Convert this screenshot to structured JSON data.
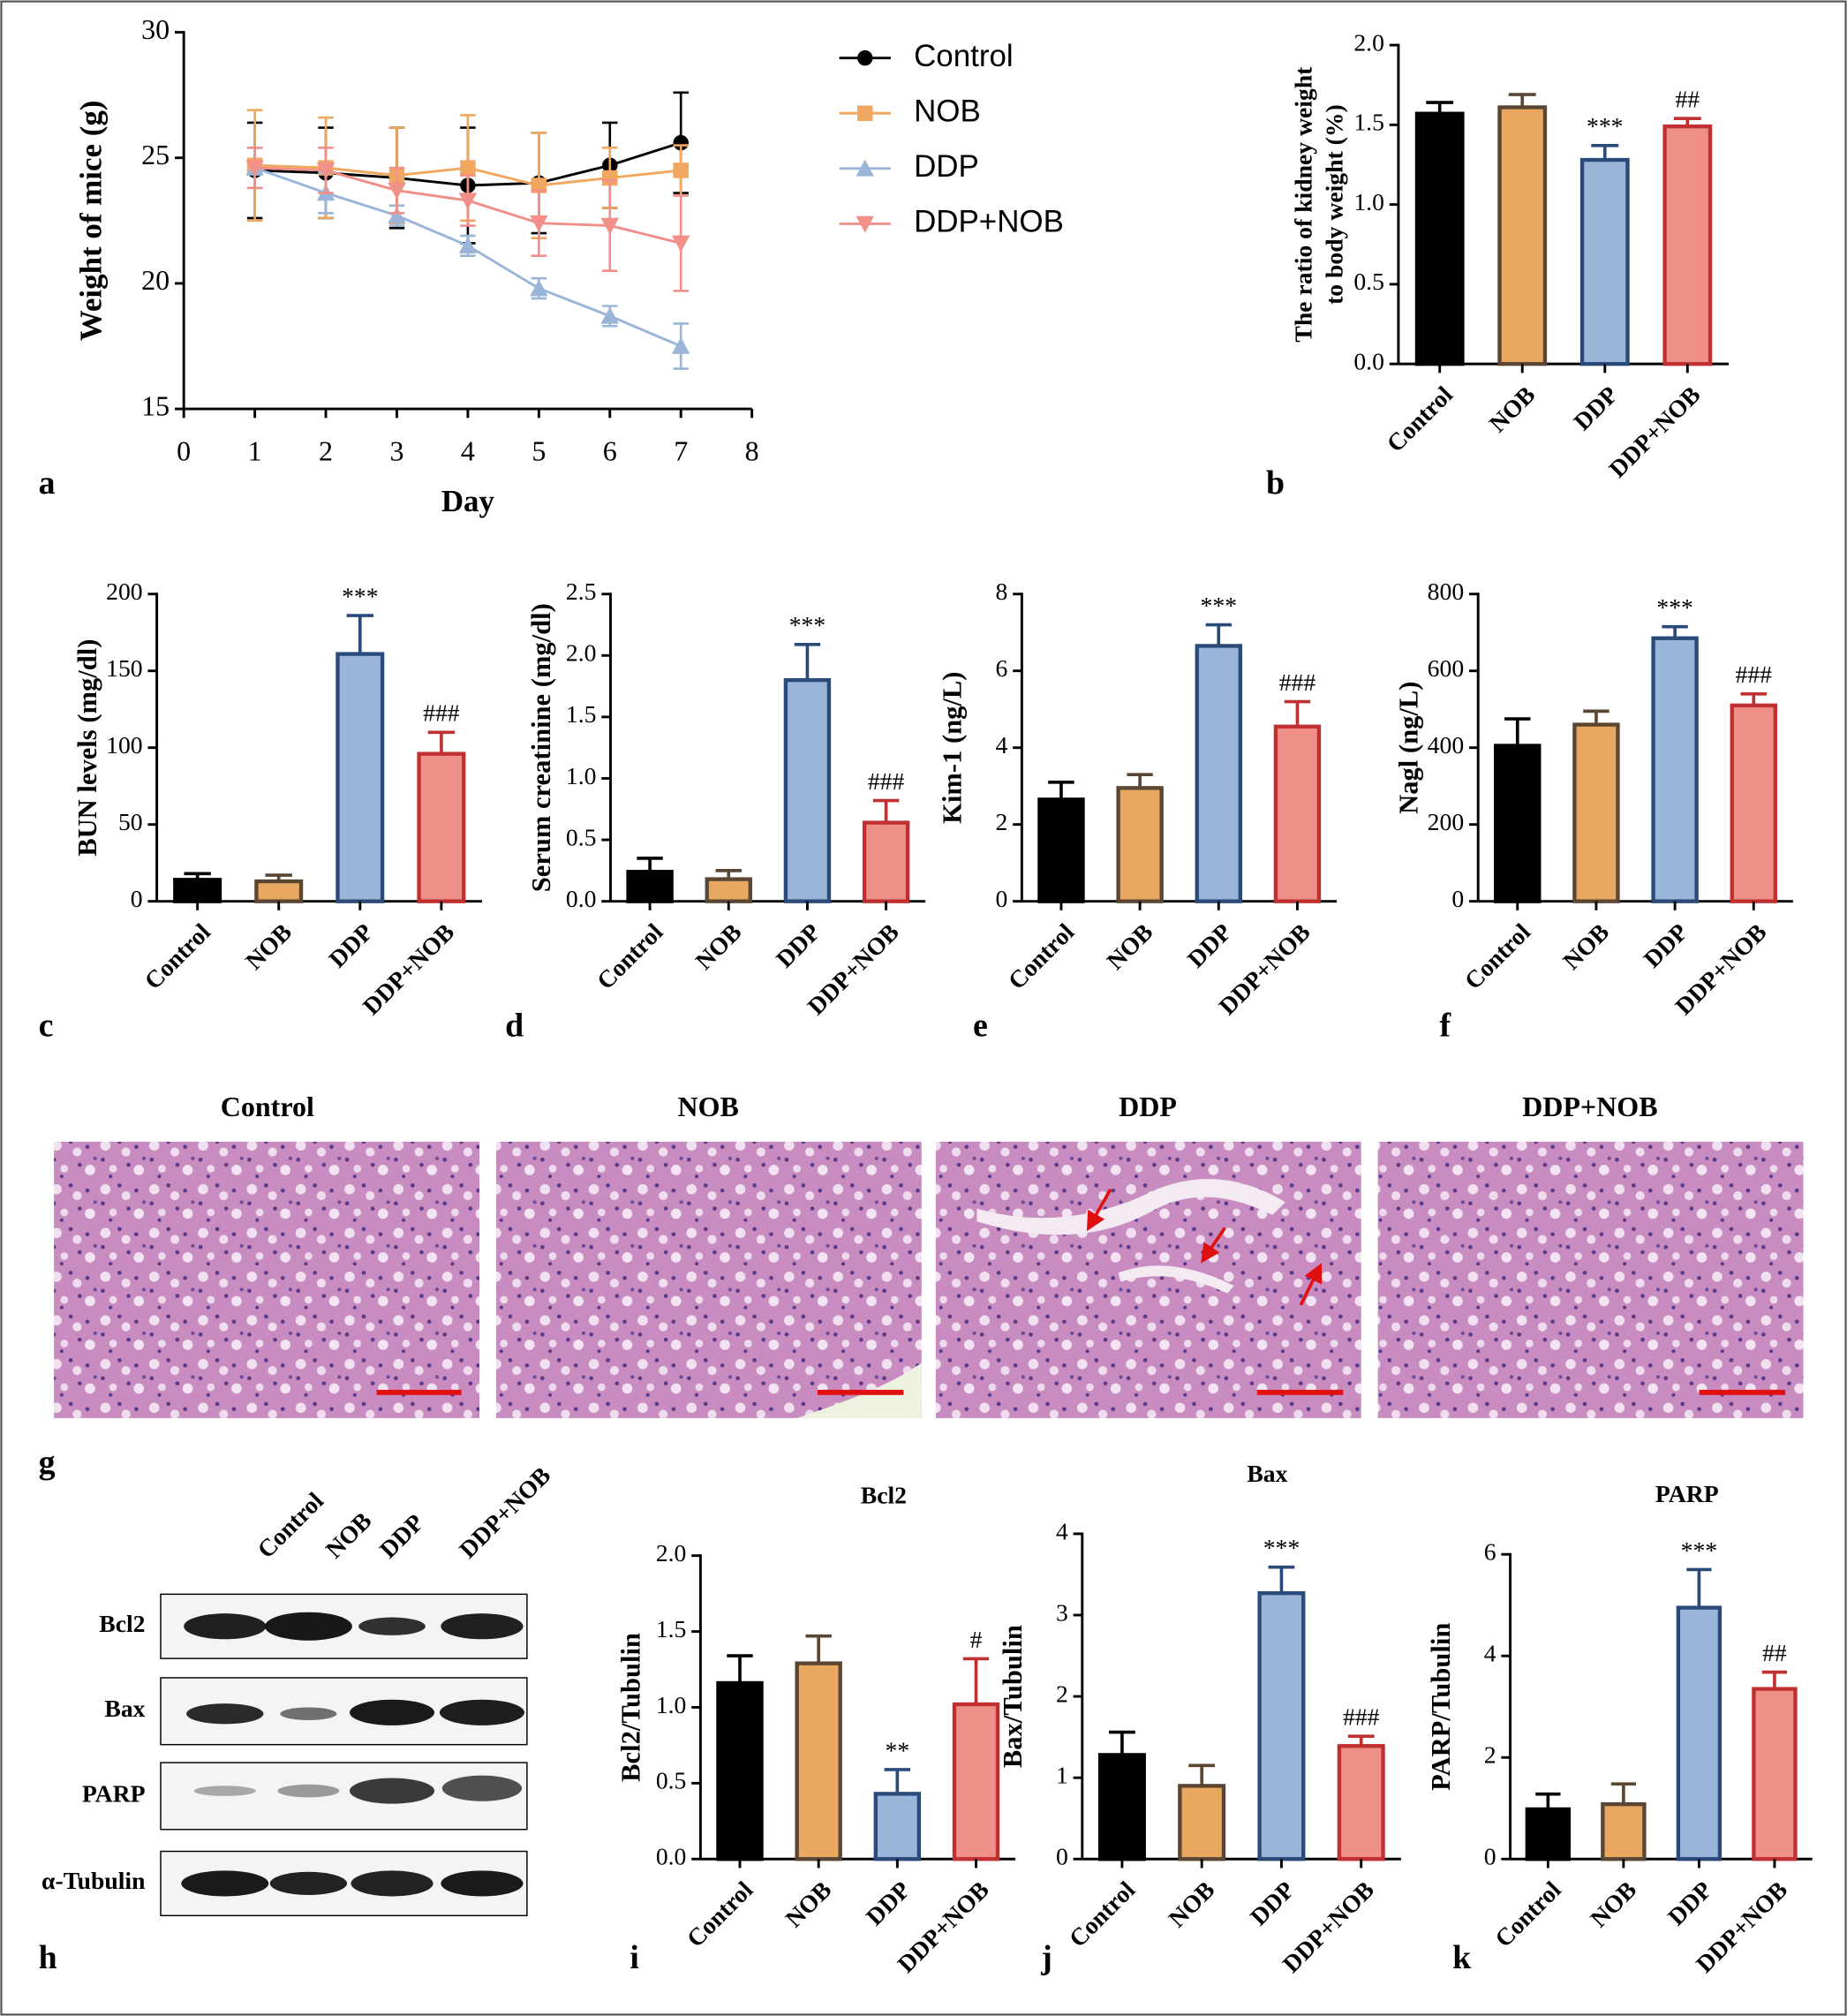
{
  "chart_data": [
    {
      "type": "line",
      "panel": "a",
      "xlabel": "Day",
      "ylabel": "Weight of mice (g)",
      "x": [
        1,
        2,
        3,
        4,
        5,
        6,
        7
      ],
      "xlim": [
        0,
        8
      ],
      "xticks": [
        0,
        1,
        2,
        3,
        4,
        5,
        6,
        7,
        8
      ],
      "ylim": [
        15,
        30
      ],
      "yticks": [
        15,
        20,
        25,
        30
      ],
      "legend": "right",
      "series": [
        {
          "name": "Control",
          "color": "#000000",
          "marker": "circle",
          "values": [
            24.5,
            24.4,
            24.2,
            23.9,
            24.0,
            24.7,
            25.6
          ],
          "errors": [
            1.9,
            1.8,
            2.0,
            2.3,
            2.0,
            1.7,
            2.0
          ]
        },
        {
          "name": "NOB",
          "color": "#f0a860",
          "marker": "square",
          "values": [
            24.7,
            24.6,
            24.3,
            24.6,
            23.9,
            24.2,
            24.5
          ],
          "errors": [
            2.2,
            2.0,
            1.9,
            2.1,
            2.1,
            1.2,
            1.0
          ]
        },
        {
          "name": "DDP",
          "color": "#9ab5d8",
          "marker": "triangle-up",
          "values": [
            24.6,
            23.6,
            22.7,
            21.5,
            19.8,
            18.7,
            17.5
          ],
          "errors": [
            0.8,
            0.8,
            0.4,
            0.4,
            0.4,
            0.4,
            0.9
          ]
        },
        {
          "name": "DDP+NOB",
          "color": "#f09088",
          "marker": "triangle-down",
          "values": [
            24.6,
            24.5,
            23.7,
            23.3,
            22.4,
            22.3,
            21.6
          ],
          "errors": [
            0.8,
            0.9,
            0.9,
            1.0,
            1.3,
            1.8,
            1.9
          ]
        }
      ]
    },
    {
      "type": "bar",
      "panel": "b",
      "ylabel": [
        "The ratio of kidney weight",
        "to body weight (%)"
      ],
      "categories": [
        "Control",
        "NOB",
        "DDP",
        "DDP+NOB"
      ],
      "values": [
        1.57,
        1.61,
        1.28,
        1.49
      ],
      "errors": [
        0.07,
        0.08,
        0.09,
        0.05
      ],
      "annotations": [
        null,
        null,
        "***",
        "##"
      ],
      "ylim": [
        0,
        2
      ],
      "yticks": [
        {
          "value": 0,
          "label": "0.0"
        },
        0.5,
        {
          "value": 1,
          "label": "1.0"
        },
        1.5,
        {
          "value": 2,
          "label": "2.0"
        }
      ],
      "colors": [
        "#000000",
        "#e8a860",
        "#9ab5d8",
        "#ee9088"
      ],
      "edgecolors": [
        "#000000",
        "#5a4632",
        "#2a4a7a",
        "#c03030"
      ]
    },
    {
      "type": "bar",
      "panel": "c",
      "ylabel": "BUN levels (mg/dl)",
      "categories": [
        "Control",
        "NOB",
        "DDP",
        "DDP+NOB"
      ],
      "values": [
        14,
        13,
        161,
        96
      ],
      "errors": [
        4,
        4,
        25,
        14
      ],
      "annotations": [
        null,
        null,
        "***",
        "###"
      ],
      "ylim": [
        0,
        200
      ],
      "yticks": [
        0,
        50,
        100,
        150,
        200
      ],
      "colors": [
        "#000000",
        "#e8a860",
        "#9ab5d8",
        "#ee9088"
      ],
      "edgecolors": [
        "#000000",
        "#5a4632",
        "#2a4a7a",
        "#c03030"
      ]
    },
    {
      "type": "bar",
      "panel": "d",
      "ylabel": "Serum creatinine (mg/dl)",
      "categories": [
        "Control",
        "NOB",
        "DDP",
        "DDP+NOB"
      ],
      "values": [
        0.24,
        0.18,
        1.8,
        0.64
      ],
      "errors": [
        0.11,
        0.07,
        0.29,
        0.18
      ],
      "annotations": [
        null,
        null,
        "***",
        "###"
      ],
      "ylim": [
        0,
        2.5
      ],
      "yticks": [
        {
          "value": 0,
          "label": "0.0"
        },
        0.5,
        {
          "value": 1,
          "label": "1.0"
        },
        1.5,
        {
          "value": 2,
          "label": "2.0"
        },
        2.5
      ],
      "colors": [
        "#000000",
        "#e8a860",
        "#9ab5d8",
        "#ee9088"
      ],
      "edgecolors": [
        "#000000",
        "#5a4632",
        "#2a4a7a",
        "#c03030"
      ]
    },
    {
      "type": "bar",
      "panel": "e",
      "ylabel": "Kim-1 (ng/L)",
      "categories": [
        "Control",
        "NOB",
        "DDP",
        "DDP+NOB"
      ],
      "values": [
        2.65,
        2.95,
        6.65,
        4.55
      ],
      "errors": [
        0.45,
        0.35,
        0.55,
        0.65
      ],
      "annotations": [
        null,
        null,
        "***",
        "###"
      ],
      "ylim": [
        0,
        8
      ],
      "yticks": [
        0,
        2,
        4,
        6,
        8
      ],
      "colors": [
        "#000000",
        "#e8a860",
        "#9ab5d8",
        "#ee9088"
      ],
      "edgecolors": [
        "#000000",
        "#5a4632",
        "#2a4a7a",
        "#c03030"
      ]
    },
    {
      "type": "bar",
      "panel": "f",
      "ylabel": "Nagl (ng/L)",
      "categories": [
        "Control",
        "NOB",
        "DDP",
        "DDP+NOB"
      ],
      "values": [
        405,
        460,
        685,
        510
      ],
      "errors": [
        70,
        35,
        30,
        30
      ],
      "annotations": [
        null,
        null,
        "***",
        "###"
      ],
      "ylim": [
        0,
        800
      ],
      "yticks": [
        0,
        200,
        400,
        600,
        800
      ],
      "colors": [
        "#000000",
        "#e8a860",
        "#9ab5d8",
        "#ee9088"
      ],
      "edgecolors": [
        "#000000",
        "#5a4632",
        "#2a4a7a",
        "#c03030"
      ]
    },
    {
      "type": "bar",
      "panel": "i",
      "title": "Bcl2",
      "ylabel": "Bcl2/Tubulin",
      "categories": [
        "Control",
        "NOB",
        "DDP",
        "DDP+NOB"
      ],
      "values": [
        1.16,
        1.29,
        0.43,
        1.02
      ],
      "errors": [
        0.18,
        0.18,
        0.16,
        0.3
      ],
      "annotations": [
        null,
        null,
        "**",
        "#"
      ],
      "ylim": [
        0,
        2
      ],
      "yticks": [
        {
          "value": 0,
          "label": "0.0"
        },
        0.5,
        {
          "value": 1,
          "label": "1.0"
        },
        1.5,
        {
          "value": 2,
          "label": "2.0"
        }
      ],
      "colors": [
        "#000000",
        "#e8a860",
        "#9ab5d8",
        "#ee9088"
      ],
      "edgecolors": [
        "#000000",
        "#5a4632",
        "#2a4a7a",
        "#c03030"
      ]
    },
    {
      "type": "bar",
      "panel": "j",
      "title": "Bax",
      "ylabel": "Bax/Tubulin",
      "categories": [
        "Control",
        "NOB",
        "DDP",
        "DDP+NOB"
      ],
      "values": [
        1.28,
        0.9,
        3.27,
        1.39
      ],
      "errors": [
        0.28,
        0.25,
        0.32,
        0.12
      ],
      "annotations": [
        null,
        null,
        "***",
        "###"
      ],
      "ylim": [
        0,
        4
      ],
      "yticks": [
        0,
        1,
        2,
        3,
        4
      ],
      "colors": [
        "#000000",
        "#e8a860",
        "#9ab5d8",
        "#ee9088"
      ],
      "edgecolors": [
        "#000000",
        "#5a4632",
        "#2a4a7a",
        "#c03030"
      ]
    },
    {
      "type": "bar",
      "panel": "k",
      "title": "PARP",
      "ylabel": "PARP/Tubulin",
      "categories": [
        "Control",
        "NOB",
        "DDP",
        "DDP+NOB"
      ],
      "values": [
        0.98,
        1.08,
        4.95,
        3.35
      ],
      "errors": [
        0.3,
        0.4,
        0.75,
        0.33
      ],
      "annotations": [
        null,
        null,
        "***",
        "##"
      ],
      "ylim": [
        0,
        6
      ],
      "yticks": [
        0,
        2,
        4,
        6
      ],
      "colors": [
        "#000000",
        "#e8a860",
        "#9ab5d8",
        "#ee9088"
      ],
      "edgecolors": [
        "#000000",
        "#5a4632",
        "#2a4a7a",
        "#c03030"
      ]
    }
  ],
  "histology": {
    "panel": "g",
    "titles": [
      "Control",
      "NOB",
      "DDP",
      "DDP+NOB"
    ]
  },
  "western_blot": {
    "panel": "h",
    "lanes": [
      "Control",
      "NOB",
      "DDP",
      "DDP+NOB"
    ],
    "proteins": [
      "Bcl2",
      "Bax",
      "PARP",
      "α-Tubulin"
    ]
  }
}
